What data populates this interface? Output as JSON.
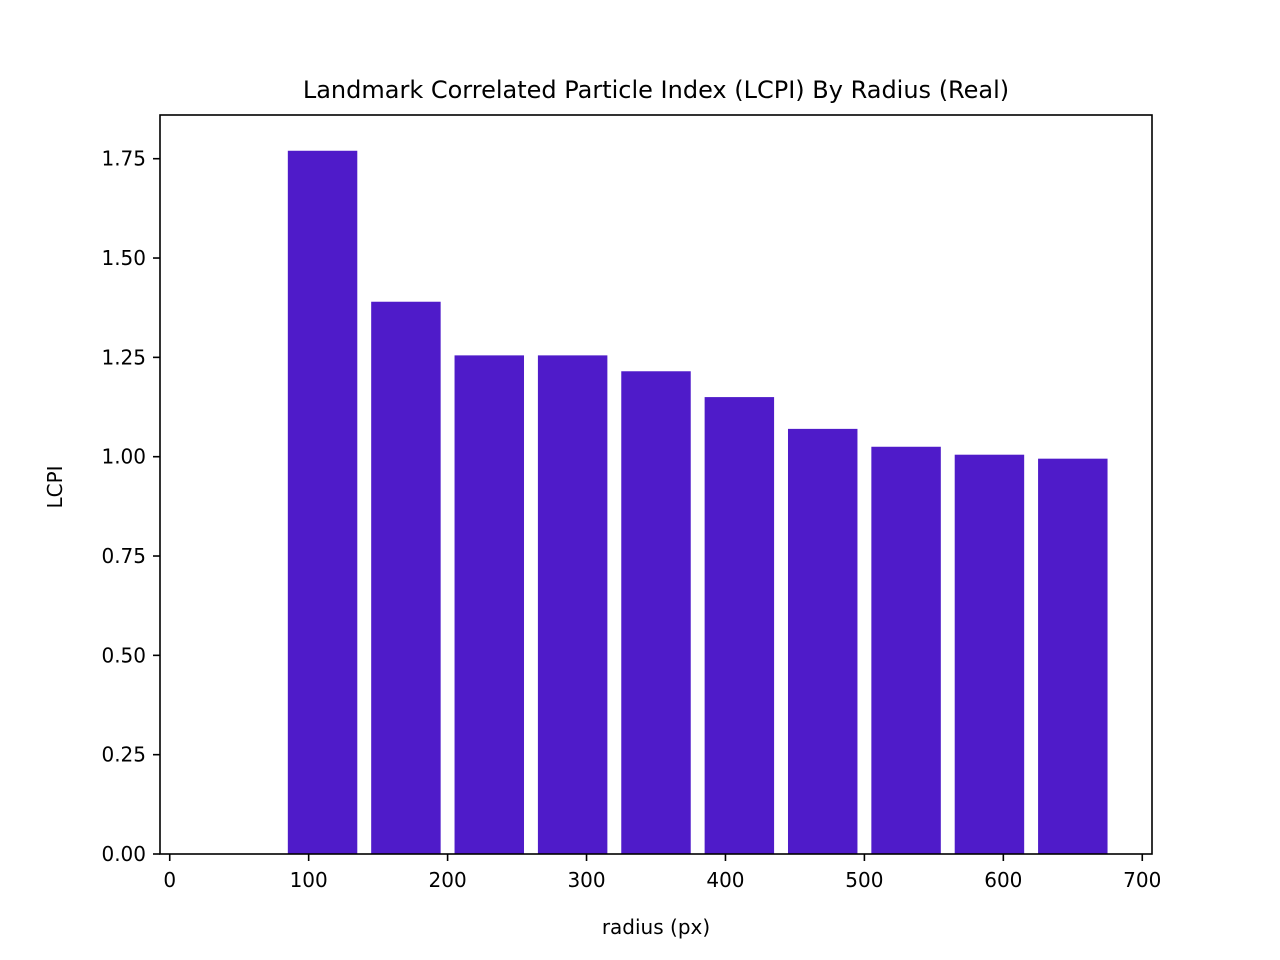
{
  "chart_data": {
    "type": "bar",
    "title": "Landmark Correlated Particle Index (LCPI) By Radius (Real)",
    "xlabel": "radius (px)",
    "ylabel": "LCPI",
    "x": [
      110,
      170,
      230,
      290,
      350,
      410,
      470,
      530,
      590,
      650
    ],
    "values": [
      1.77,
      1.39,
      1.255,
      1.255,
      1.215,
      1.15,
      1.07,
      1.025,
      1.005,
      0.995
    ],
    "bar_width": 50,
    "xlim": [
      -7,
      707
    ],
    "ylim": [
      0,
      1.86
    ],
    "xticks": [
      0,
      100,
      200,
      300,
      400,
      500,
      600,
      700
    ],
    "yticks": [
      0,
      0.25,
      0.5,
      0.75,
      1.0,
      1.25,
      1.5,
      1.75
    ],
    "xtick_labels": [
      "0",
      "100",
      "200",
      "300",
      "400",
      "500",
      "600",
      "700"
    ],
    "ytick_labels": [
      "0.00",
      "0.25",
      "0.50",
      "0.75",
      "1.00",
      "1.25",
      "1.50",
      "1.75"
    ],
    "bar_color": "#4f1bc9",
    "grid": false,
    "legend": "none"
  }
}
